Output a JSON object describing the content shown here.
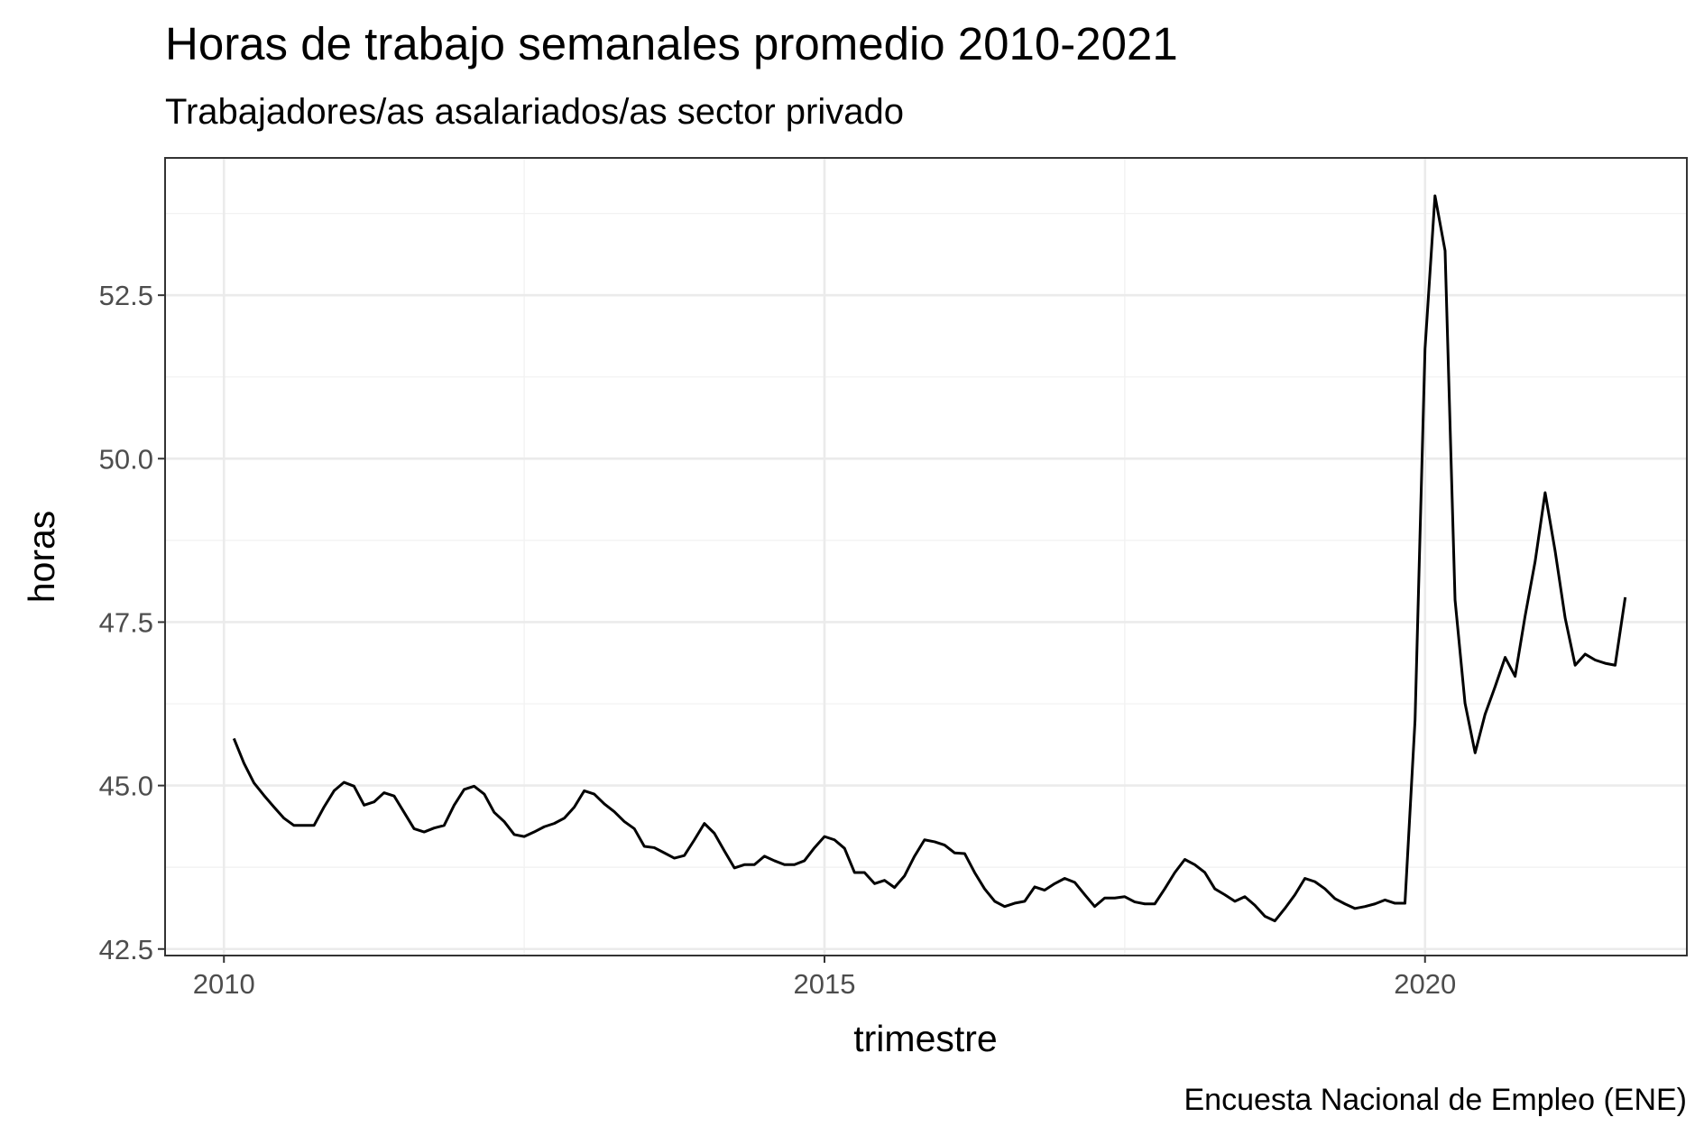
{
  "chart_data": {
    "type": "line",
    "title": "Horas de trabajo semanales promedio 2010-2021",
    "subtitle": "Trabajadores/as asalariados/as sector privado",
    "x_label": "trimestre",
    "y_label": "horas",
    "caption": "Encuesta Nacional de Empleo (ENE)",
    "x": [
      2010.083,
      2010.167,
      2010.25,
      2010.333,
      2010.417,
      2010.5,
      2010.583,
      2010.667,
      2010.75,
      2010.833,
      2010.917,
      2011,
      2011.083,
      2011.167,
      2011.25,
      2011.333,
      2011.417,
      2011.5,
      2011.583,
      2011.667,
      2011.75,
      2011.833,
      2011.917,
      2012,
      2012.083,
      2012.167,
      2012.25,
      2012.333,
      2012.417,
      2012.5,
      2012.583,
      2012.667,
      2012.75,
      2012.833,
      2012.917,
      2013,
      2013.083,
      2013.167,
      2013.25,
      2013.333,
      2013.417,
      2013.5,
      2013.583,
      2013.667,
      2013.75,
      2013.833,
      2013.917,
      2014,
      2014.083,
      2014.167,
      2014.25,
      2014.333,
      2014.417,
      2014.5,
      2014.583,
      2014.667,
      2014.75,
      2014.833,
      2014.917,
      2015,
      2015.083,
      2015.167,
      2015.25,
      2015.333,
      2015.417,
      2015.5,
      2015.583,
      2015.667,
      2015.75,
      2015.833,
      2015.917,
      2016,
      2016.083,
      2016.167,
      2016.25,
      2016.333,
      2016.417,
      2016.5,
      2016.583,
      2016.667,
      2016.75,
      2016.833,
      2016.917,
      2017,
      2017.083,
      2017.167,
      2017.25,
      2017.333,
      2017.417,
      2017.5,
      2017.583,
      2017.667,
      2017.75,
      2017.833,
      2017.917,
      2018,
      2018.083,
      2018.167,
      2018.25,
      2018.333,
      2018.417,
      2018.5,
      2018.583,
      2018.667,
      2018.75,
      2018.833,
      2018.917,
      2019,
      2019.083,
      2019.167,
      2019.25,
      2019.333,
      2019.417,
      2019.5,
      2019.583,
      2019.667,
      2019.75,
      2019.833,
      2019.917,
      2020,
      2020.083,
      2020.167,
      2020.25,
      2020.333,
      2020.417,
      2020.5,
      2020.583,
      2020.667,
      2020.75,
      2020.833,
      2020.917,
      2021,
      2021.083,
      2021.167,
      2021.25,
      2021.333,
      2021.417,
      2021.5,
      2021.583,
      2021.667
    ],
    "series": [
      {
        "name": "horas",
        "color": "#000000",
        "values": [
          45.72,
          45.34,
          45.04,
          44.85,
          44.67,
          44.5,
          44.39,
          44.39,
          44.39,
          44.67,
          44.92,
          45.05,
          44.99,
          44.7,
          44.75,
          44.89,
          44.84,
          44.59,
          44.34,
          44.29,
          44.35,
          44.39,
          44.7,
          44.94,
          44.99,
          44.87,
          44.59,
          44.45,
          44.25,
          44.22,
          44.29,
          44.37,
          44.42,
          44.5,
          44.67,
          44.92,
          44.87,
          44.72,
          44.6,
          44.45,
          44.34,
          44.07,
          44.05,
          43.97,
          43.89,
          43.93,
          44.17,
          44.42,
          44.27,
          44.0,
          43.74,
          43.79,
          43.79,
          43.92,
          43.85,
          43.79,
          43.79,
          43.85,
          44.05,
          44.22,
          44.17,
          44.04,
          43.67,
          43.67,
          43.5,
          43.55,
          43.44,
          43.62,
          43.92,
          44.17,
          44.14,
          44.09,
          43.97,
          43.96,
          43.67,
          43.42,
          43.23,
          43.15,
          43.2,
          43.23,
          43.45,
          43.4,
          43.5,
          43.58,
          43.52,
          43.33,
          43.15,
          43.28,
          43.28,
          43.3,
          43.22,
          43.19,
          43.19,
          43.42,
          43.67,
          43.87,
          43.79,
          43.67,
          43.42,
          43.33,
          43.23,
          43.3,
          43.17,
          43.0,
          42.93,
          43.12,
          43.33,
          43.58,
          43.53,
          43.42,
          43.27,
          43.19,
          43.12,
          43.15,
          43.19,
          43.25,
          43.2,
          43.2,
          46.0,
          51.68,
          54.02,
          53.18,
          47.84,
          46.26,
          45.5,
          46.09,
          46.51,
          46.96,
          46.67,
          47.59,
          48.43,
          49.48,
          48.59,
          47.56,
          46.84,
          47.01,
          46.92,
          46.87,
          46.84,
          47.88
        ]
      }
    ],
    "xlim": [
      2009.51,
      2022.18
    ],
    "xticks": [
      2010,
      2015,
      2020
    ],
    "ylim": [
      42.4,
      54.6
    ],
    "yticks": [
      42.5,
      {
        "value": 45,
        "label": "45.0"
      },
      47.5,
      {
        "value": 50,
        "label": "50.0"
      },
      52.5
    ],
    "grid": true
  }
}
